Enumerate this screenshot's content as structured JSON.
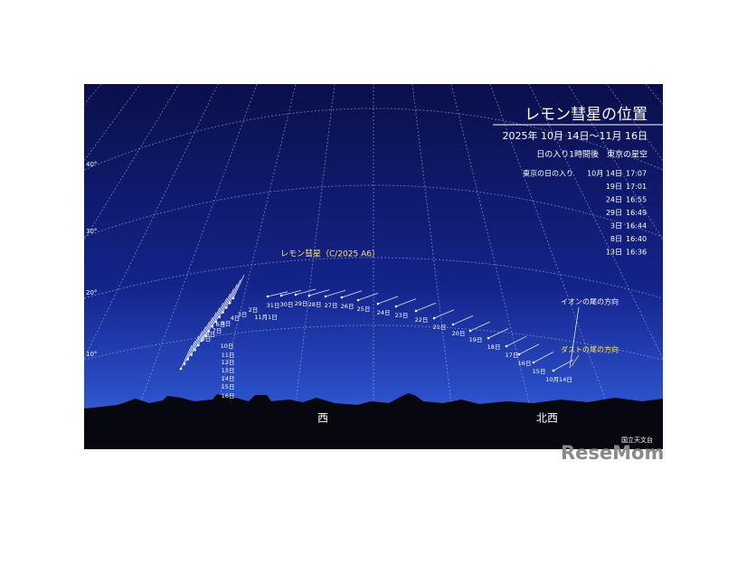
{
  "header": {
    "title": "レモン彗星の位置",
    "period": "2025年 10月 14日〜11月 16日",
    "subtitle": "日の入り1時間後　東京の星空"
  },
  "sunset": {
    "label": "東京の日の入り",
    "rows": [
      [
        "10月 14日",
        "17:07"
      ],
      [
        "19日",
        "17:01"
      ],
      [
        "24日",
        "16:55"
      ],
      [
        "29日",
        "16:49"
      ],
      [
        "3日",
        "16:44"
      ],
      [
        "8日",
        "16:40"
      ],
      [
        "13日",
        "16:36"
      ]
    ]
  },
  "altitudes": [
    "40°",
    "30°",
    "20°",
    "10°"
  ],
  "comet_name": "レモン彗星（C/2025 A6）",
  "dates": [
    "10月14日",
    "15日",
    "16日",
    "17日",
    "18日",
    "19日",
    "20日",
    "21日",
    "22日",
    "23日",
    "24日",
    "25日",
    "26日",
    "27日",
    "28日",
    "29日",
    "30日",
    "31日",
    "11月1日",
    "2日",
    "3日",
    "4日",
    "5日",
    "6日",
    "7日",
    "8日",
    "9日",
    "10日",
    "11日",
    "12日",
    "13日",
    "14日",
    "15日",
    "16日"
  ],
  "tails": {
    "ion": "イオンの尾の方向",
    "dust": "ダストの尾の方向"
  },
  "directions": {
    "west": "西",
    "northwest": "北西"
  },
  "credit": "国立天文台",
  "watermark": "ReseMom"
}
